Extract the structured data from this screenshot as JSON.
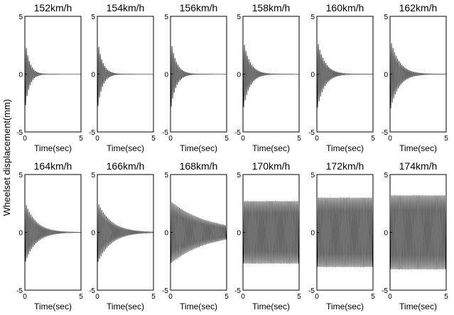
{
  "figure": {
    "ylabel": "Wheelset displacement(mm)"
  },
  "chart_data": [
    {
      "type": "line",
      "title": "152km/h",
      "xlabel": "Time(sec)",
      "xlim": [
        0,
        5
      ],
      "ylim": [
        -5,
        5
      ],
      "xticks": [
        "0",
        "5"
      ],
      "yticks": [
        "-5",
        "0",
        "5"
      ],
      "series": [
        {
          "amplitude_initial": 3.2,
          "decay_to_zero_sec": 1.6,
          "regime": "decaying"
        }
      ]
    },
    {
      "type": "line",
      "title": "154km/h",
      "xlabel": "Time(sec)",
      "xlim": [
        0,
        5
      ],
      "ylim": [
        -5,
        5
      ],
      "xticks": [
        "0",
        "5"
      ],
      "yticks": [
        "-5",
        "0",
        "5"
      ],
      "series": [
        {
          "amplitude_initial": 3.2,
          "decay_to_zero_sec": 1.8,
          "regime": "decaying"
        }
      ]
    },
    {
      "type": "line",
      "title": "156km/h",
      "xlabel": "Time(sec)",
      "xlim": [
        0,
        5
      ],
      "ylim": [
        -5,
        5
      ],
      "xticks": [
        "0",
        "5"
      ],
      "yticks": [
        "-5",
        "0",
        "5"
      ],
      "series": [
        {
          "amplitude_initial": 3.2,
          "decay_to_zero_sec": 2.0,
          "regime": "decaying"
        }
      ]
    },
    {
      "type": "line",
      "title": "158km/h",
      "xlabel": "Time(sec)",
      "xlim": [
        0,
        5
      ],
      "ylim": [
        -5,
        5
      ],
      "xticks": [
        "0",
        "5"
      ],
      "yticks": [
        "-5",
        "0",
        "5"
      ],
      "series": [
        {
          "amplitude_initial": 3.2,
          "decay_to_zero_sec": 2.4,
          "regime": "decaying"
        }
      ]
    },
    {
      "type": "line",
      "title": "160km/h",
      "xlabel": "Time(sec)",
      "xlim": [
        0,
        5
      ],
      "ylim": [
        -5,
        5
      ],
      "xticks": [
        "0",
        "5"
      ],
      "yticks": [
        "-5",
        "0",
        "5"
      ],
      "series": [
        {
          "amplitude_initial": 3.2,
          "decay_to_zero_sec": 2.7,
          "regime": "decaying"
        }
      ]
    },
    {
      "type": "line",
      "title": "162km/h",
      "xlabel": "Time(sec)",
      "xlim": [
        0,
        5
      ],
      "ylim": [
        -5,
        5
      ],
      "xticks": [
        "0",
        "5"
      ],
      "yticks": [
        "-5",
        "0",
        "5"
      ],
      "series": [
        {
          "amplitude_initial": 3.2,
          "decay_to_zero_sec": 3.2,
          "regime": "decaying"
        }
      ]
    },
    {
      "type": "line",
      "title": "164km/h",
      "xlabel": "Time(sec)",
      "xlim": [
        0,
        5
      ],
      "ylim": [
        -5,
        5
      ],
      "xticks": [
        "0",
        "5"
      ],
      "yticks": [
        "-5",
        "0",
        "5"
      ],
      "series": [
        {
          "amplitude_initial": 2.7,
          "decay_to_zero_sec": 4.0,
          "regime": "decaying"
        }
      ]
    },
    {
      "type": "line",
      "title": "166km/h",
      "xlabel": "Time(sec)",
      "xlim": [
        0,
        5
      ],
      "ylim": [
        -5,
        5
      ],
      "xticks": [
        "0",
        "5"
      ],
      "yticks": [
        "-5",
        "0",
        "5"
      ],
      "series": [
        {
          "amplitude_initial": 2.7,
          "decay_to_zero_sec": 5.0,
          "regime": "decaying"
        }
      ]
    },
    {
      "type": "line",
      "title": "168km/h",
      "xlabel": "Time(sec)",
      "xlim": [
        0,
        5
      ],
      "ylim": [
        -5,
        5
      ],
      "xticks": [
        "0",
        "5"
      ],
      "yticks": [
        "-5",
        "0",
        "5"
      ],
      "series": [
        {
          "amplitude_initial": 2.7,
          "amplitude_final": 0.6,
          "regime": "slowly decaying"
        }
      ]
    },
    {
      "type": "line",
      "title": "170km/h",
      "xlabel": "Time(sec)",
      "xlim": [
        0,
        5
      ],
      "ylim": [
        -5,
        5
      ],
      "xticks": [
        "0",
        "5"
      ],
      "yticks": [
        "-5",
        "0",
        "5"
      ],
      "series": [
        {
          "amplitude_initial": 2.7,
          "amplitude_final": 2.7,
          "regime": "sustained"
        }
      ]
    },
    {
      "type": "line",
      "title": "172km/h",
      "xlabel": "Time(sec)",
      "xlim": [
        0,
        5
      ],
      "ylim": [
        -5,
        5
      ],
      "xticks": [
        "0",
        "5"
      ],
      "yticks": [
        "-5",
        "0",
        "5"
      ],
      "series": [
        {
          "amplitude_initial": 3.0,
          "amplitude_final": 3.0,
          "regime": "sustained"
        }
      ]
    },
    {
      "type": "line",
      "title": "174km/h",
      "xlabel": "Time(sec)",
      "xlim": [
        0,
        5
      ],
      "ylim": [
        -5,
        5
      ],
      "xticks": [
        "0",
        "5"
      ],
      "yticks": [
        "-5",
        "0",
        "5"
      ],
      "series": [
        {
          "amplitude_initial": 3.2,
          "amplitude_final": 3.2,
          "regime": "sustained"
        }
      ]
    }
  ]
}
